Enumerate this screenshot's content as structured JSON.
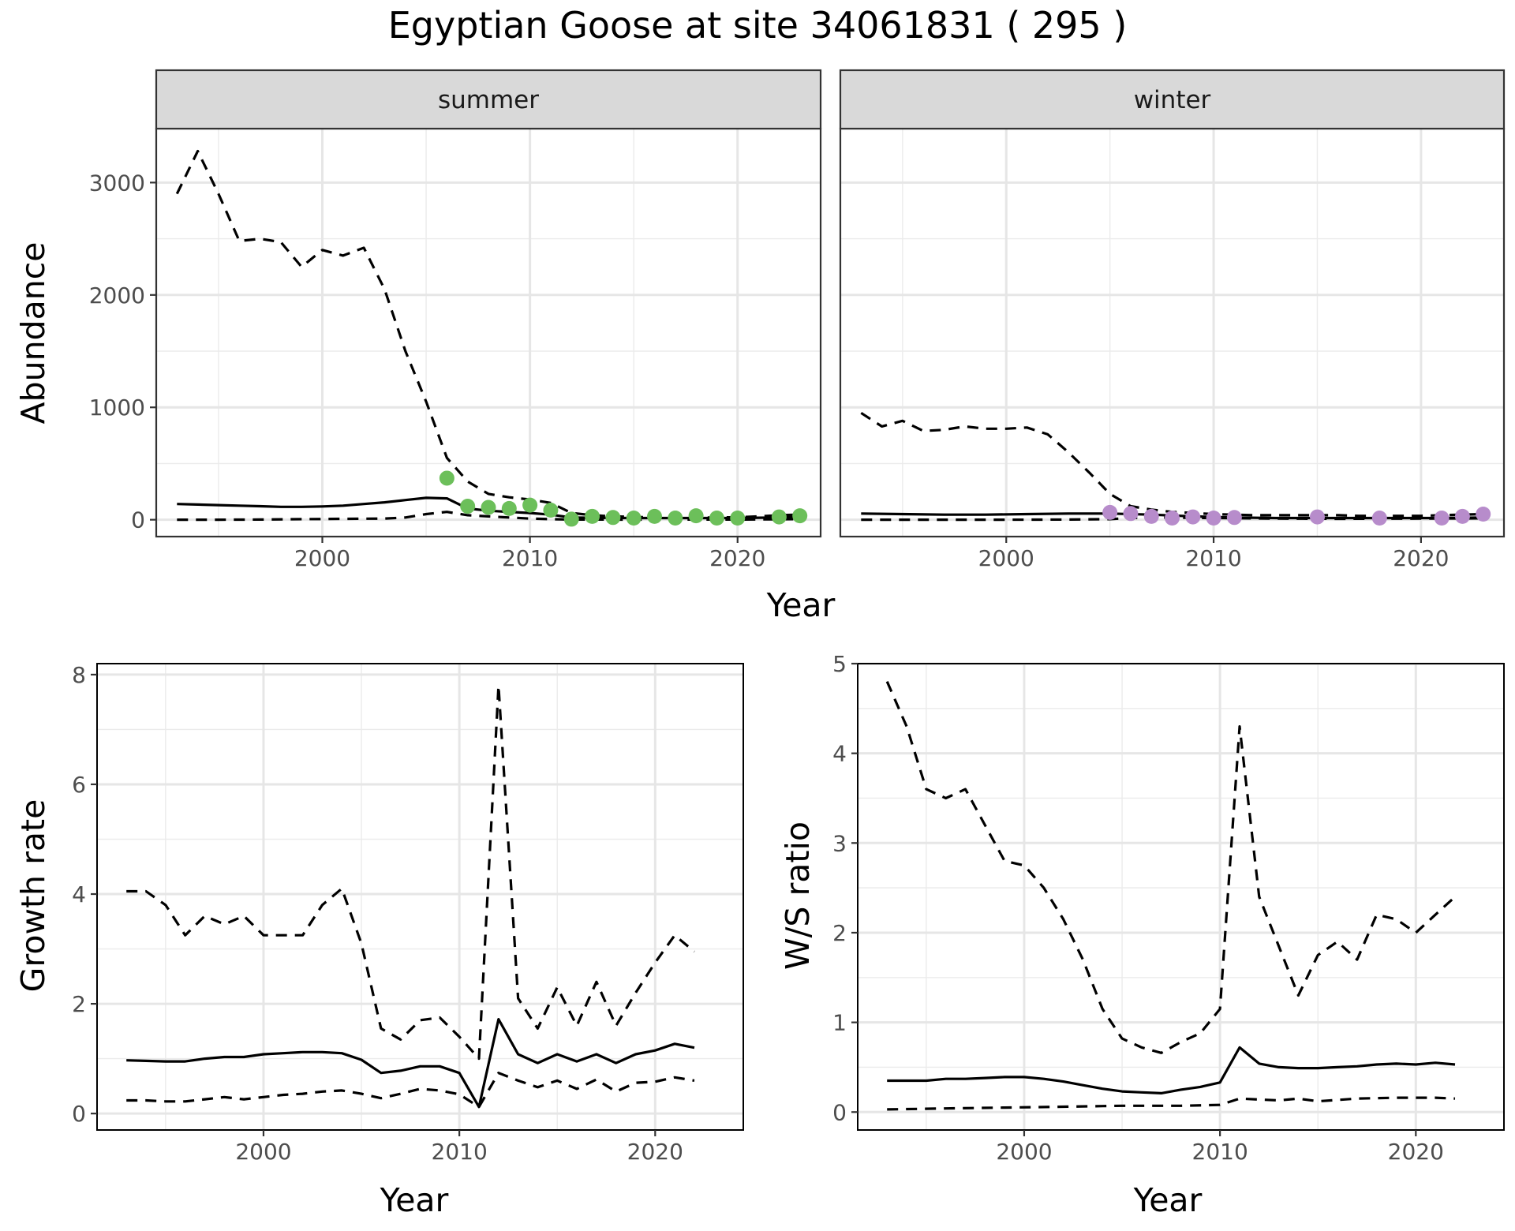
{
  "title": "Egyptian Goose at site 34061831 ( 295 )",
  "colors": {
    "summer_points": "#6cbf5a",
    "winter_points": "#b78ccb",
    "lines": "#000000"
  },
  "chart_data": [
    {
      "type": "line",
      "panel": "summer",
      "strip_label": "summer",
      "xlabel": "Year",
      "ylabel": "Abundance",
      "xlim": [
        1992,
        2024
      ],
      "ylim": [
        -150,
        3480
      ],
      "xticks": [
        2000,
        2010,
        2020
      ],
      "yticks": [
        0,
        1000,
        2000,
        3000
      ],
      "grid": true,
      "series": [
        {
          "style": "solid",
          "x": [
            1993,
            1994,
            1995,
            1996,
            1997,
            1998,
            1999,
            2000,
            2001,
            2002,
            2003,
            2004,
            2005,
            2006,
            2007,
            2008,
            2009,
            2010,
            2011,
            2012,
            2013,
            2014,
            2015,
            2016,
            2017,
            2018,
            2019,
            2020,
            2021,
            2022,
            2023
          ],
          "y": [
            140,
            135,
            130,
            125,
            120,
            115,
            115,
            118,
            125,
            140,
            155,
            175,
            195,
            190,
            100,
            80,
            70,
            60,
            45,
            20,
            18,
            16,
            15,
            15,
            15,
            15,
            15,
            15,
            18,
            20,
            25
          ]
        },
        {
          "style": "dashed",
          "x": [
            1993,
            1994,
            1995,
            1996,
            1997,
            1998,
            1999,
            2000,
            2001,
            2002,
            2003,
            2004,
            2005,
            2006,
            2007,
            2008,
            2009,
            2010,
            2011,
            2012,
            2013,
            2014,
            2015,
            2016,
            2017,
            2018,
            2019,
            2020,
            2021,
            2022,
            2023
          ],
          "y": [
            2900,
            3280,
            2900,
            2480,
            2500,
            2470,
            2250,
            2400,
            2350,
            2420,
            2050,
            1500,
            1050,
            550,
            340,
            230,
            200,
            180,
            150,
            60,
            40,
            30,
            25,
            20,
            25,
            20,
            20,
            22,
            30,
            40,
            45
          ]
        },
        {
          "style": "dashed",
          "x": [
            1993,
            1995,
            1997,
            1999,
            2001,
            2003,
            2004,
            2005,
            2006,
            2007,
            2008,
            2009,
            2010,
            2011,
            2012,
            2015,
            2020,
            2023
          ],
          "y": [
            0,
            0,
            2,
            5,
            8,
            10,
            20,
            50,
            70,
            40,
            30,
            20,
            10,
            5,
            2,
            1,
            2,
            5
          ]
        },
        {
          "style": "points",
          "x": [
            2006,
            2007,
            2008,
            2009,
            2010,
            2011,
            2012,
            2013,
            2014,
            2015,
            2016,
            2017,
            2018,
            2019,
            2020,
            2022,
            2023
          ],
          "y": [
            370,
            120,
            110,
            100,
            130,
            85,
            5,
            30,
            20,
            15,
            30,
            15,
            35,
            15,
            15,
            25,
            35
          ]
        }
      ]
    },
    {
      "type": "line",
      "panel": "winter",
      "strip_label": "winter",
      "xlabel": "Year",
      "ylabel": "",
      "xlim": [
        1992,
        2024
      ],
      "ylim": [
        -150,
        3480
      ],
      "xticks": [
        2000,
        2010,
        2020
      ],
      "yticks": [
        0,
        1000,
        2000,
        3000
      ],
      "grid": true,
      "series": [
        {
          "style": "solid",
          "x": [
            1993,
            1995,
            1997,
            1999,
            2001,
            2003,
            2005,
            2007,
            2009,
            2011,
            2013,
            2015,
            2017,
            2019,
            2021,
            2023
          ],
          "y": [
            55,
            50,
            45,
            45,
            50,
            55,
            55,
            45,
            30,
            20,
            15,
            15,
            15,
            15,
            15,
            20
          ]
        },
        {
          "style": "dashed",
          "x": [
            1993,
            1994,
            1995,
            1996,
            1997,
            1998,
            1999,
            2000,
            2001,
            2002,
            2003,
            2004,
            2005,
            2006,
            2007,
            2008,
            2009,
            2010,
            2011,
            2012,
            2013,
            2014,
            2015,
            2016,
            2017,
            2018,
            2019,
            2020,
            2021,
            2022,
            2023
          ],
          "y": [
            950,
            830,
            880,
            790,
            800,
            830,
            810,
            810,
            820,
            760,
            600,
            420,
            230,
            120,
            90,
            70,
            60,
            50,
            45,
            40,
            40,
            40,
            40,
            40,
            35,
            35,
            35,
            35,
            40,
            45,
            50
          ]
        },
        {
          "style": "dashed",
          "x": [
            1993,
            1996,
            2000,
            2003,
            2005,
            2006,
            2007,
            2010,
            2013,
            2016,
            2020,
            2023
          ],
          "y": [
            0,
            0,
            0,
            2,
            5,
            15,
            20,
            15,
            10,
            8,
            10,
            12
          ]
        },
        {
          "style": "points",
          "x": [
            2005,
            2006,
            2007,
            2008,
            2009,
            2010,
            2011,
            2015,
            2018,
            2021,
            2022,
            2023
          ],
          "y": [
            65,
            55,
            30,
            15,
            25,
            15,
            20,
            25,
            15,
            15,
            30,
            50
          ]
        }
      ]
    },
    {
      "type": "line",
      "panel": "growth",
      "xlabel": "Year",
      "ylabel": "Growth rate",
      "xlim": [
        1991.5,
        2024.5
      ],
      "ylim": [
        -0.3,
        8.2
      ],
      "xticks": [
        2000,
        2010,
        2020
      ],
      "yticks": [
        0,
        2,
        4,
        6,
        8
      ],
      "grid": true,
      "series": [
        {
          "style": "solid",
          "x": [
            1993,
            1994,
            1995,
            1996,
            1997,
            1998,
            1999,
            2000,
            2001,
            2002,
            2003,
            2004,
            2005,
            2006,
            2007,
            2008,
            2009,
            2010,
            2011,
            2012,
            2013,
            2014,
            2015,
            2016,
            2017,
            2018,
            2019,
            2020,
            2021,
            2022
          ],
          "y": [
            0.97,
            0.96,
            0.95,
            0.95,
            1.0,
            1.03,
            1.03,
            1.08,
            1.1,
            1.12,
            1.12,
            1.1,
            0.98,
            0.74,
            0.78,
            0.86,
            0.86,
            0.74,
            0.12,
            1.72,
            1.08,
            0.92,
            1.08,
            0.95,
            1.08,
            0.92,
            1.08,
            1.15,
            1.27,
            1.2
          ]
        },
        {
          "style": "dashed",
          "x": [
            1993,
            1994,
            1995,
            1996,
            1997,
            1998,
            1999,
            2000,
            2001,
            2002,
            2003,
            2004,
            2005,
            2006,
            2007,
            2008,
            2009,
            2010,
            2011,
            2012,
            2013,
            2014,
            2015,
            2016,
            2017,
            2018,
            2019,
            2020,
            2021,
            2022
          ],
          "y": [
            4.05,
            4.05,
            3.8,
            3.25,
            3.6,
            3.45,
            3.6,
            3.25,
            3.25,
            3.25,
            3.8,
            4.1,
            3.1,
            1.55,
            1.35,
            1.7,
            1.75,
            1.4,
            1.0,
            7.8,
            2.1,
            1.55,
            2.3,
            1.6,
            2.4,
            1.6,
            2.2,
            2.75,
            3.25,
            2.95
          ]
        },
        {
          "style": "dashed",
          "x": [
            1993,
            1994,
            1995,
            1996,
            1997,
            1998,
            1999,
            2000,
            2001,
            2002,
            2003,
            2004,
            2005,
            2006,
            2007,
            2008,
            2009,
            2010,
            2011,
            2012,
            2013,
            2014,
            2015,
            2016,
            2017,
            2018,
            2019,
            2020,
            2021,
            2022
          ],
          "y": [
            0.24,
            0.24,
            0.22,
            0.22,
            0.26,
            0.3,
            0.26,
            0.3,
            0.34,
            0.36,
            0.4,
            0.42,
            0.36,
            0.28,
            0.36,
            0.45,
            0.42,
            0.35,
            0.12,
            0.74,
            0.6,
            0.48,
            0.6,
            0.45,
            0.62,
            0.4,
            0.56,
            0.58,
            0.66,
            0.6
          ]
        }
      ]
    },
    {
      "type": "line",
      "panel": "ratio",
      "xlabel": "Year",
      "ylabel": "W/S ratio",
      "xlim": [
        1991.5,
        2024.5
      ],
      "ylim": [
        -0.2,
        5.0
      ],
      "xticks": [
        2000,
        2010,
        2020
      ],
      "yticks": [
        0,
        1,
        2,
        3,
        4,
        5
      ],
      "grid": true,
      "series": [
        {
          "style": "solid",
          "x": [
            1993,
            1994,
            1995,
            1996,
            1997,
            1998,
            1999,
            2000,
            2001,
            2002,
            2003,
            2004,
            2005,
            2006,
            2007,
            2008,
            2009,
            2010,
            2011,
            2012,
            2013,
            2014,
            2015,
            2016,
            2017,
            2018,
            2019,
            2020,
            2021,
            2022
          ],
          "y": [
            0.35,
            0.35,
            0.35,
            0.37,
            0.37,
            0.38,
            0.39,
            0.39,
            0.37,
            0.34,
            0.3,
            0.26,
            0.23,
            0.22,
            0.21,
            0.25,
            0.28,
            0.33,
            0.72,
            0.54,
            0.5,
            0.49,
            0.49,
            0.5,
            0.51,
            0.53,
            0.54,
            0.53,
            0.55,
            0.53
          ]
        },
        {
          "style": "dashed",
          "x": [
            1993,
            1994,
            1995,
            1996,
            1997,
            1998,
            1999,
            2000,
            2001,
            2002,
            2003,
            2004,
            2005,
            2006,
            2007,
            2008,
            2009,
            2010,
            2011,
            2012,
            2013,
            2014,
            2015,
            2016,
            2017,
            2018,
            2019,
            2020,
            2021,
            2022
          ],
          "y": [
            4.8,
            4.3,
            3.6,
            3.5,
            3.6,
            3.2,
            2.8,
            2.75,
            2.5,
            2.15,
            1.7,
            1.15,
            0.82,
            0.72,
            0.66,
            0.78,
            0.88,
            1.15,
            4.3,
            2.4,
            1.85,
            1.3,
            1.75,
            1.9,
            1.7,
            2.2,
            2.15,
            2.0,
            2.2,
            2.4
          ]
        },
        {
          "style": "dashed",
          "x": [
            1993,
            1996,
            1999,
            2002,
            2005,
            2008,
            2010,
            2011,
            2012,
            2013,
            2014,
            2015,
            2017,
            2019,
            2021,
            2022
          ],
          "y": [
            0.03,
            0.04,
            0.05,
            0.06,
            0.07,
            0.07,
            0.08,
            0.15,
            0.14,
            0.13,
            0.15,
            0.12,
            0.15,
            0.16,
            0.16,
            0.15
          ]
        }
      ]
    }
  ]
}
